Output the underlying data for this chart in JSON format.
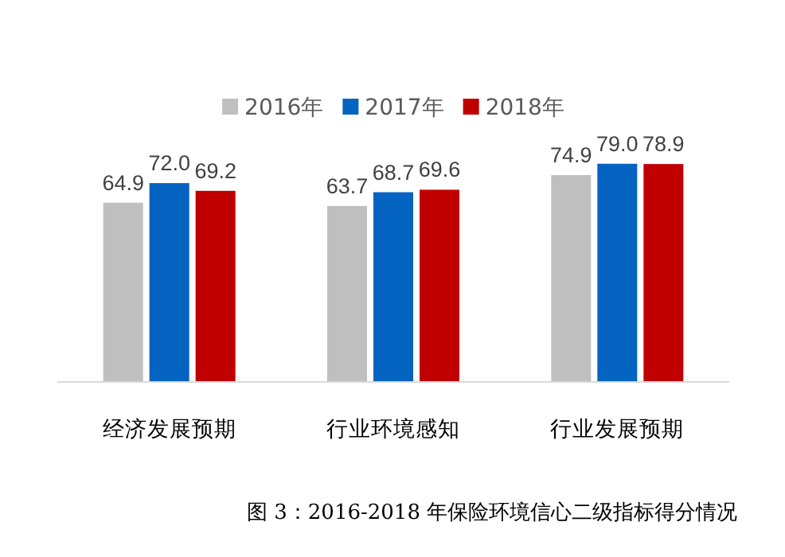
{
  "chart_data": {
    "type": "bar",
    "categories": [
      "经济发展预期",
      "行业环境感知",
      "行业发展预期"
    ],
    "series": [
      {
        "name": "2016年",
        "color": "#bfbfbf",
        "values": [
          64.9,
          63.7,
          74.9
        ],
        "value_labels": [
          "64.9",
          "63.7",
          "74.9"
        ]
      },
      {
        "name": "2017年",
        "color": "#0563c1",
        "values": [
          72.0,
          68.7,
          79.0
        ],
        "value_labels": [
          "72.0",
          "68.7",
          "79.0"
        ]
      },
      {
        "name": "2018年",
        "color": "#c00000",
        "values": [
          69.2,
          69.6,
          78.9
        ],
        "value_labels": [
          "69.2",
          "69.6",
          "78.9"
        ]
      }
    ],
    "legend": "top",
    "annotations": [
      "图 3：2016-2018 年保险环境信心二级指标得分情况"
    ]
  }
}
